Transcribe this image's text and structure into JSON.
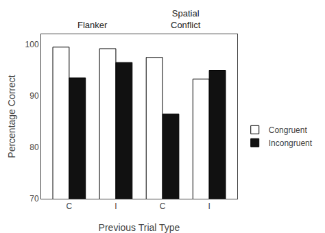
{
  "chart_data": {
    "type": "bar",
    "categories": [
      "C",
      "I",
      "C",
      "I"
    ],
    "series": [
      {
        "name": "Congruent",
        "color": "#ffffff",
        "values": [
          99.5,
          99.2,
          97.5,
          93.3
        ]
      },
      {
        "name": "Incongruent",
        "color": "#111111",
        "values": [
          93.5,
          96.5,
          86.5,
          95.0
        ]
      }
    ],
    "xlabel": "Previous Trial Type",
    "ylabel": "Percentage Correct",
    "ylim": [
      70,
      102
    ],
    "yticks": [
      70,
      80,
      90,
      100
    ],
    "annotations": [
      "Flanker",
      "Spatial\nConflict"
    ],
    "legend": "right",
    "grid": false
  }
}
